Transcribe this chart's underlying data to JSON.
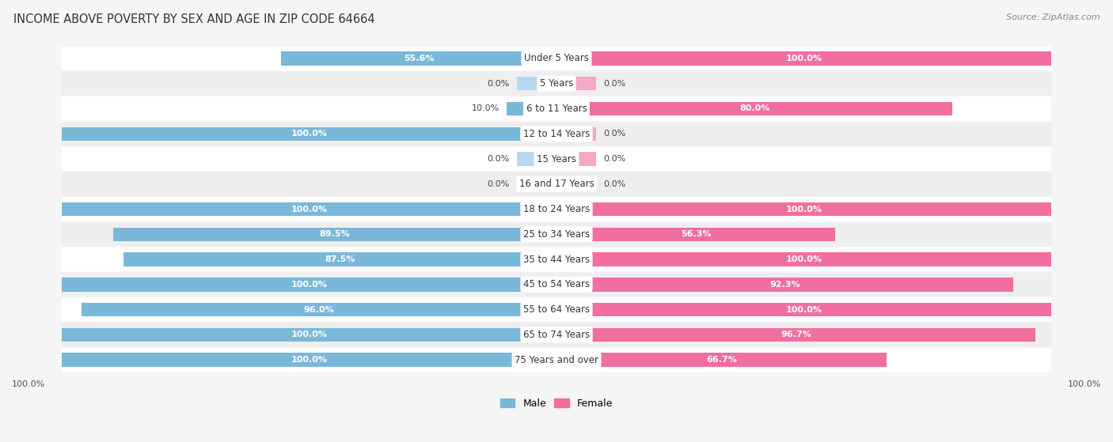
{
  "title": "INCOME ABOVE POVERTY BY SEX AND AGE IN ZIP CODE 64664",
  "source": "Source: ZipAtlas.com",
  "categories": [
    "Under 5 Years",
    "5 Years",
    "6 to 11 Years",
    "12 to 14 Years",
    "15 Years",
    "16 and 17 Years",
    "18 to 24 Years",
    "25 to 34 Years",
    "35 to 44 Years",
    "45 to 54 Years",
    "55 to 64 Years",
    "65 to 74 Years",
    "75 Years and over"
  ],
  "male_values": [
    55.6,
    0.0,
    10.0,
    100.0,
    0.0,
    0.0,
    100.0,
    89.5,
    87.5,
    100.0,
    96.0,
    100.0,
    100.0
  ],
  "female_values": [
    100.0,
    0.0,
    80.0,
    0.0,
    0.0,
    0.0,
    100.0,
    56.3,
    100.0,
    92.3,
    100.0,
    96.7,
    66.7
  ],
  "male_color": "#7ab8d9",
  "male_color_light": "#b8d9ed",
  "female_color": "#f06fa0",
  "female_color_light": "#f5a8c5",
  "row_colors": [
    "#ffffff",
    "#eeeeee"
  ],
  "title_fontsize": 10.5,
  "value_fontsize": 8,
  "cat_fontsize": 8.5,
  "bar_height": 0.55,
  "max_val": 100
}
